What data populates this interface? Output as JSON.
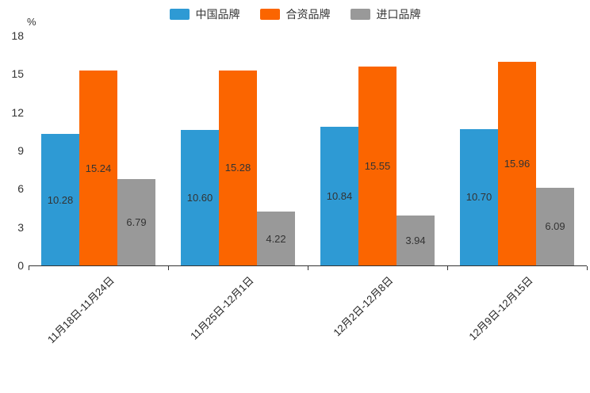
{
  "chart_data": {
    "type": "bar",
    "title": "",
    "categories": [
      "11月18日-11月24日",
      "11月25日-12月1日",
      "12月2日-12月8日",
      "12月9日-12月15日"
    ],
    "series": [
      {
        "name": "中国品牌",
        "color": "#2E9AD4",
        "values": [
          10.28,
          10.6,
          10.84,
          10.7
        ]
      },
      {
        "name": "合资品牌",
        "color": "#FB6500",
        "values": [
          15.24,
          15.28,
          15.55,
          15.96
        ]
      },
      {
        "name": "进口品牌",
        "color": "#999999",
        "values": [
          6.79,
          4.22,
          3.94,
          6.09
        ]
      }
    ],
    "xlabel": "",
    "ylabel": "%",
    "ylim": [
      0,
      18
    ],
    "yticks": [
      0,
      3,
      6,
      9,
      12,
      15,
      18
    ],
    "grid": false,
    "legend_position": "top",
    "value_labels": true,
    "value_label_position": "inside-center",
    "axis_color": "#333333",
    "label_color": "#333333"
  }
}
